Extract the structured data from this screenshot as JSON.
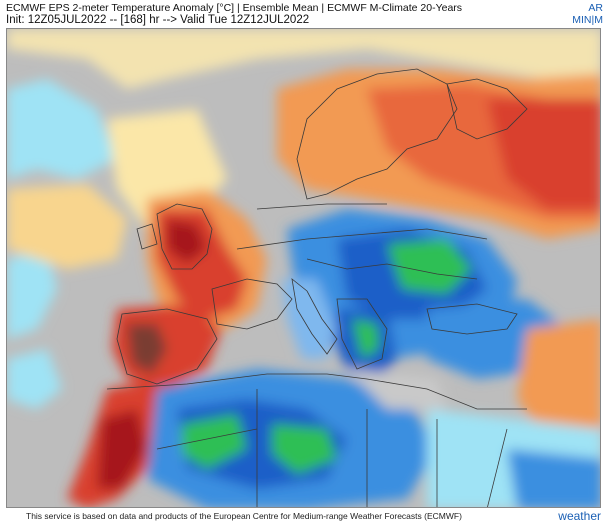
{
  "header": {
    "title": "ECMWF EPS 2-meter Temperature Anomaly [°C] | Ensemble Mean | ECMWF M-Climate 20-Years",
    "subtitle": "Init: 12Z05JUL2022 -- [168] hr --> Valid Tue 12Z12JUL2022",
    "corner_top": "AR",
    "corner_bottom": "MIN|M"
  },
  "footer": {
    "credit": "This service is based on data and products of the European Centre for Medium-range Weather Forecasts (ECMWF)",
    "brand": "weather"
  },
  "colors": {
    "sea": "#b8b8b8",
    "neutral": "#d4d4d4",
    "light_cyan": "#9fe3f5",
    "blue": "#3b8fe0",
    "deep_blue": "#1e5ec8",
    "green": "#2fbf55",
    "pale_yellow": "#fbe7a8",
    "orange": "#f29a52",
    "red": "#d9402e",
    "dark_red": "#a6181c",
    "brown": "#7a3d33",
    "border": "#3a3a3a"
  }
}
